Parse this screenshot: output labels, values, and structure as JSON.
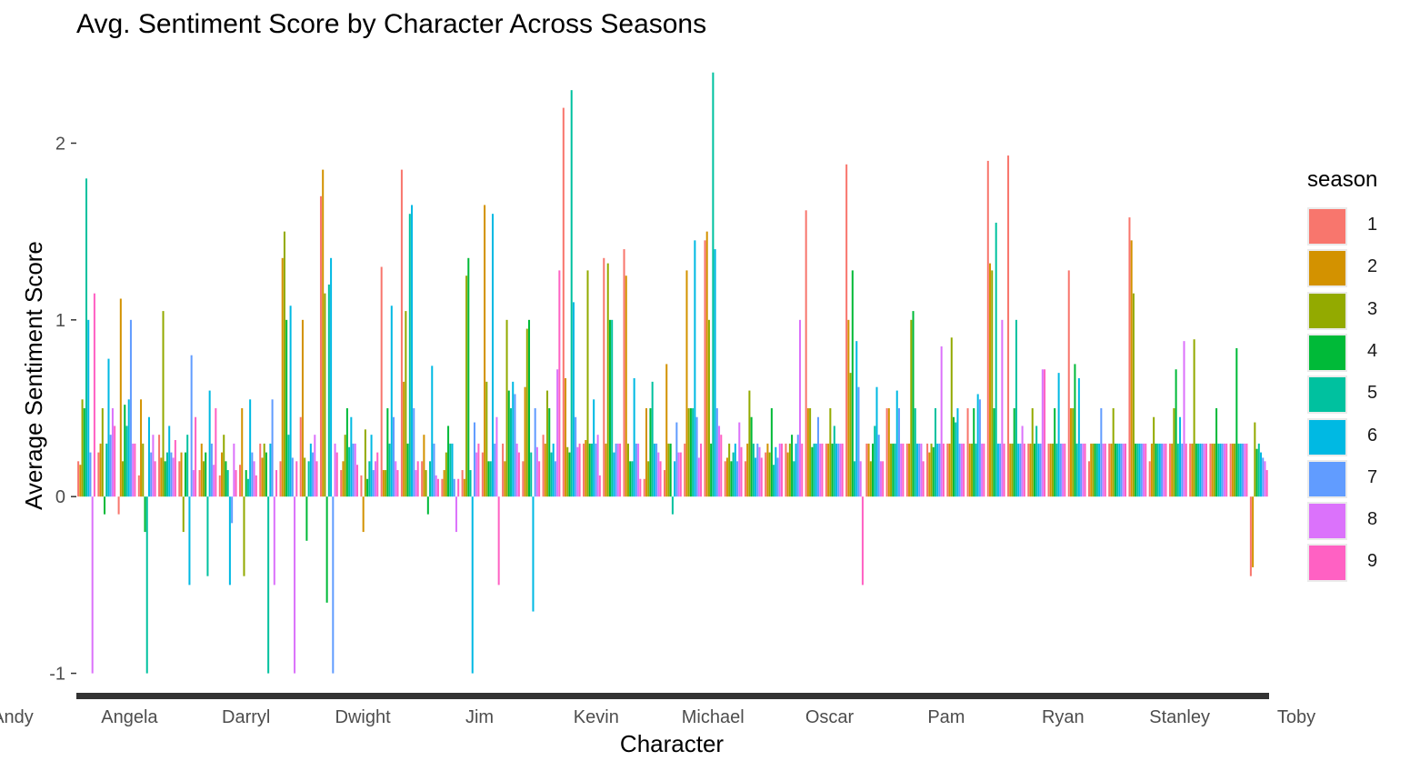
{
  "chart_data": {
    "type": "bar",
    "title": "Avg. Sentiment Score by Character Across Seasons",
    "xlabel": "Character",
    "ylabel": "Average Sentiment Score",
    "ylim": [
      -1.1,
      2.45
    ],
    "y_ticks": [
      -1,
      0,
      1,
      2
    ],
    "grid": false,
    "legend_title": "season",
    "legend_position": "right",
    "series": [
      {
        "name": "1",
        "color": "#F8766D"
      },
      {
        "name": "2",
        "color": "#D39200"
      },
      {
        "name": "3",
        "color": "#93AA00"
      },
      {
        "name": "4",
        "color": "#00BA38"
      },
      {
        "name": "5",
        "color": "#00C19F"
      },
      {
        "name": "6",
        "color": "#00B9E3"
      },
      {
        "name": "7",
        "color": "#619CFF"
      },
      {
        "name": "8",
        "color": "#DB72FB"
      },
      {
        "name": "9",
        "color": "#FF61C3"
      }
    ],
    "x_tick_labels_visible": [
      "Andy",
      "Angela",
      "Darryl",
      "Dwight",
      "Jim",
      "Kevin",
      "Michael",
      "Oscar",
      "Pam",
      "Ryan",
      "Stanley",
      "Toby"
    ],
    "bars": [
      [
        0.2,
        0.18,
        0.55,
        0.5,
        1.8,
        1.0,
        0.25,
        -1.0,
        1.15
      ],
      [
        0.25,
        0.3,
        0.5,
        -0.1,
        0.3,
        0.78,
        0.35,
        0.5,
        0.4
      ],
      [
        -0.1,
        1.12,
        0.2,
        0.52,
        0.4,
        0.55,
        1.0,
        0.3,
        0.3
      ],
      [
        0.12,
        0.55,
        0.3,
        -0.2,
        -1.0,
        0.45,
        0.25,
        0.35,
        0.2
      ],
      [
        0.35,
        0.22,
        1.05,
        0.2,
        0.25,
        0.4,
        0.25,
        0.22,
        0.32
      ],
      [
        0.2,
        0.25,
        -0.2,
        0.25,
        0.35,
        -0.5,
        0.8,
        0.15,
        0.45
      ],
      [
        0.15,
        0.3,
        0.2,
        0.25,
        -0.45,
        0.6,
        0.3,
        0.18,
        0.5
      ],
      [
        0.12,
        0.25,
        0.35,
        0.2,
        0.15,
        -0.5,
        -0.15,
        0.3,
        0.15
      ],
      [
        0.18,
        0.5,
        -0.45,
        0.15,
        0.1,
        0.55,
        0.25,
        0.2,
        0.12
      ],
      [
        0.3,
        0.22,
        0.3,
        0.25,
        -1.0,
        0.3,
        0.55,
        -0.5,
        0.15
      ],
      [
        0.2,
        1.35,
        1.5,
        1.0,
        0.35,
        1.08,
        0.22,
        -1.0,
        0.2
      ],
      [
        0.45,
        1.0,
        0.22,
        -0.25,
        0.2,
        0.3,
        0.25,
        0.35,
        0.2
      ],
      [
        1.7,
        1.85,
        1.15,
        -0.6,
        1.2,
        1.35,
        -1.0,
        0.3,
        0.25
      ],
      [
        0.15,
        0.2,
        0.35,
        0.5,
        0.28,
        0.45,
        0.3,
        0.3,
        0.18
      ],
      [
        0.12,
        -0.2,
        0.38,
        0.1,
        0.2,
        0.35,
        0.15,
        0.2,
        0.25
      ],
      [
        1.3,
        0.15,
        0.15,
        0.5,
        0.3,
        1.08,
        0.45,
        0.2,
        0.15
      ],
      [
        1.85,
        0.65,
        1.05,
        0.3,
        1.6,
        1.65,
        0.5,
        0.15,
        0.2
      ],
      [
        0.2,
        0.35,
        0.15,
        -0.1,
        0.2,
        0.74,
        0.3,
        0.12,
        0.1
      ],
      [
        0.1,
        0.15,
        0.25,
        0.4,
        0.3,
        0.3,
        0.1,
        -0.2,
        0.1
      ],
      [
        0.15,
        0.1,
        1.25,
        1.35,
        0.15,
        -1.0,
        0.42,
        0.25,
        0.3
      ],
      [
        0.25,
        1.65,
        0.65,
        0.2,
        0.2,
        1.6,
        0.3,
        0.45,
        -0.5
      ],
      [
        0.3,
        0.2,
        1.0,
        0.6,
        0.5,
        0.65,
        0.58,
        0.3,
        0.25
      ],
      [
        0.2,
        0.62,
        0.95,
        1.0,
        0.25,
        -0.65,
        0.5,
        0.28,
        0.2
      ],
      [
        0.35,
        0.3,
        0.6,
        0.5,
        0.25,
        0.3,
        0.2,
        0.72,
        1.28
      ],
      [
        2.2,
        0.67,
        0.28,
        0.25,
        2.3,
        1.1,
        0.45,
        0.28,
        0.3
      ],
      [
        0.3,
        0.32,
        1.28,
        0.3,
        0.3,
        0.55,
        0.3,
        0.35,
        0.12
      ],
      [
        1.35,
        0.3,
        1.32,
        1.0,
        1.0,
        0.25,
        0.3,
        0.3,
        0.3
      ],
      [
        1.4,
        1.25,
        0.3,
        0.2,
        0.2,
        0.67,
        0.3,
        0.3,
        0.1
      ],
      [
        0.1,
        0.5,
        0.2,
        0.5,
        0.65,
        0.3,
        0.3,
        0.25,
        0.2
      ],
      [
        0.15,
        0.75,
        0.3,
        0.3,
        -0.1,
        0.2,
        0.42,
        0.25,
        0.25
      ],
      [
        0.3,
        1.28,
        0.5,
        0.5,
        0.5,
        1.45,
        0.45,
        0.22,
        0.3
      ],
      [
        1.45,
        1.5,
        1.0,
        0.3,
        2.4,
        1.4,
        0.5,
        0.4,
        0.35
      ],
      [
        0.2,
        0.22,
        0.3,
        0.2,
        0.25,
        0.3,
        0.2,
        0.42,
        0.28
      ],
      [
        0.2,
        0.3,
        0.6,
        0.45,
        0.3,
        0.22,
        0.3,
        0.28,
        0.22
      ],
      [
        0.25,
        0.3,
        0.25,
        0.5,
        0.18,
        0.28,
        0.22,
        0.3,
        0.3
      ],
      [
        0.3,
        0.25,
        0.3,
        0.35,
        0.2,
        0.3,
        0.35,
        1.0,
        0.3
      ],
      [
        1.62,
        0.5,
        0.5,
        0.28,
        0.3,
        0.3,
        0.45,
        0.3,
        0.3
      ],
      [
        0.3,
        0.3,
        0.5,
        0.3,
        0.4,
        0.3,
        0.3,
        0.3,
        0.3
      ],
      [
        1.88,
        1.0,
        0.7,
        1.28,
        0.2,
        0.88,
        0.62,
        0.2,
        -0.5
      ],
      [
        0.3,
        0.3,
        0.2,
        0.3,
        0.4,
        0.62,
        0.35,
        0.2,
        0.2
      ],
      [
        0.5,
        0.5,
        0.3,
        0.3,
        0.3,
        0.6,
        0.5,
        0.3,
        0.3
      ],
      [
        0.3,
        0.3,
        1.0,
        1.05,
        0.5,
        0.3,
        0.3,
        0.3,
        0.2
      ],
      [
        0.3,
        0.25,
        0.3,
        0.28,
        0.5,
        0.3,
        0.3,
        0.85,
        0.3
      ],
      [
        0.3,
        0.3,
        0.9,
        0.45,
        0.42,
        0.5,
        0.3,
        0.3,
        0.3
      ],
      [
        0.5,
        0.3,
        0.3,
        0.5,
        0.3,
        0.58,
        0.55,
        0.3,
        0.3
      ],
      [
        1.9,
        1.32,
        1.28,
        0.5,
        1.55,
        0.3,
        0.3,
        1.0,
        0.3
      ],
      [
        1.93,
        0.3,
        0.3,
        0.5,
        1.0,
        0.3,
        0.3,
        0.4,
        0.3
      ],
      [
        0.3,
        0.3,
        0.5,
        0.3,
        0.4,
        0.3,
        0.3,
        0.72,
        0.72
      ],
      [
        0.3,
        0.3,
        0.3,
        0.5,
        0.3,
        0.7,
        0.3,
        0.3,
        0.3
      ],
      [
        1.28,
        0.5,
        0.5,
        0.75,
        0.3,
        0.67,
        0.3,
        0.3,
        0.3
      ],
      [
        0.2,
        0.3,
        0.3,
        0.3,
        0.3,
        0.3,
        0.5,
        0.3,
        0.3
      ],
      [
        0.3,
        0.3,
        0.5,
        0.3,
        0.3,
        0.3,
        0.3,
        0.3,
        0.3
      ],
      [
        1.58,
        1.45,
        1.15,
        0.3,
        0.3,
        0.3,
        0.3,
        0.3,
        0.3
      ],
      [
        0.2,
        0.3,
        0.45,
        0.3,
        0.3,
        0.3,
        0.3,
        0.3,
        0.3
      ],
      [
        0.3,
        0.3,
        0.5,
        0.72,
        0.3,
        0.45,
        0.3,
        0.88,
        0.3
      ],
      [
        0.3,
        0.3,
        0.89,
        0.3,
        0.3,
        0.3,
        0.3,
        0.3,
        0.3
      ],
      [
        0.3,
        0.3,
        0.3,
        0.5,
        0.3,
        0.3,
        0.3,
        0.3,
        0.3
      ],
      [
        0.3,
        0.3,
        0.3,
        0.84,
        0.3,
        0.3,
        0.3,
        0.3,
        0.3
      ],
      [
        -0.45,
        -0.4,
        0.42,
        0.27,
        0.3,
        0.25,
        0.22,
        0.2,
        0.15
      ]
    ]
  }
}
